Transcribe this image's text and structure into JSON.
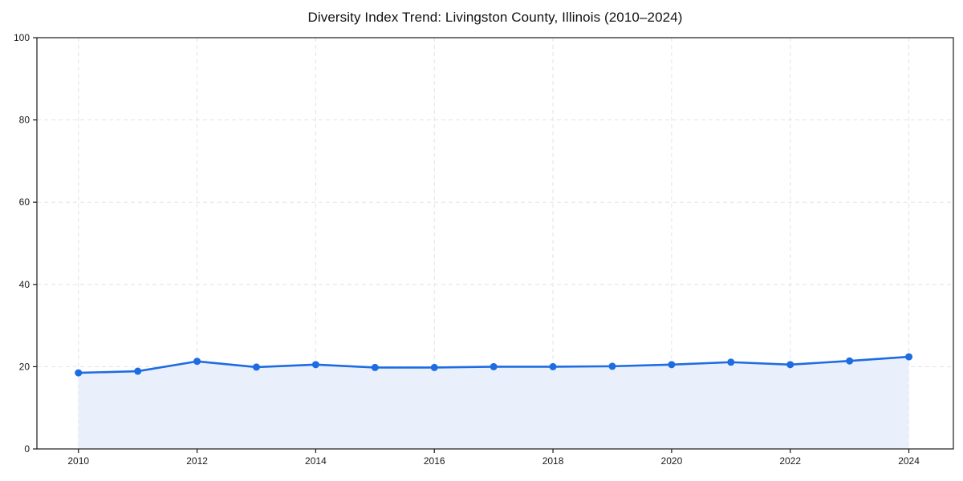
{
  "page": {
    "title": "Diversity Index Trend: Livingston County, Illinois (2010–2024)"
  },
  "chart_data": {
    "type": "line",
    "title": "Diversity Index Trend: Livingston County, Illinois (2010–2024)",
    "x": [
      2010,
      2011,
      2012,
      2013,
      2014,
      2015,
      2016,
      2017,
      2018,
      2019,
      2020,
      2021,
      2022,
      2023,
      2024
    ],
    "series": [
      {
        "name": "Diversity Index",
        "values": [
          18.5,
          18.9,
          21.3,
          19.9,
          20.5,
          19.8,
          19.8,
          20.0,
          20.0,
          20.1,
          20.5,
          21.1,
          20.5,
          21.4,
          22.4
        ]
      }
    ],
    "xlabel": "",
    "ylabel": "",
    "xlim": [
      2009.3,
      2024.75
    ],
    "ylim": [
      0,
      100
    ],
    "xticks": [
      2010,
      2012,
      2014,
      2016,
      2018,
      2020,
      2022,
      2024
    ],
    "yticks": [
      0,
      20,
      40,
      60,
      80,
      100
    ],
    "grid": true,
    "grid_style": "dashed",
    "grid_color": "#e3e3e3",
    "legend_position": "none",
    "line_color": "#1e6ce2",
    "marker": "circle",
    "marker_color": "#1e6ce2",
    "area_fill": true,
    "area_fill_color": "#e9f0fc",
    "axis_color": "#1a1a1a",
    "area_fill_span": [
      2010,
      2024
    ]
  }
}
